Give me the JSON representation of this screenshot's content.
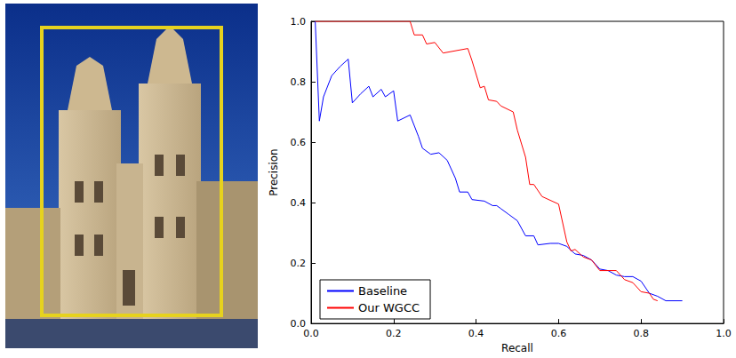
{
  "chart_data": {
    "type": "line",
    "x_label": "Recall",
    "y_label": "Precision",
    "xlim": [
      0,
      1
    ],
    "ylim": [
      0,
      1
    ],
    "xticks": [
      {
        "value": 0,
        "label": "0.0"
      },
      0.2,
      0.4,
      0.6,
      0.8,
      {
        "value": 1,
        "label": "1.0"
      }
    ],
    "yticks": [
      {
        "value": 0,
        "label": "0.0"
      },
      0.2,
      0.4,
      0.6,
      0.8,
      {
        "value": 1,
        "label": "1.0"
      }
    ],
    "grid": false,
    "legend": "lower left",
    "series": [
      {
        "name": "Baseline",
        "color": "#0000ff",
        "x": [
          0.01,
          0.02,
          0.03,
          0.05,
          0.07,
          0.09,
          0.1,
          0.12,
          0.14,
          0.15,
          0.17,
          0.18,
          0.2,
          0.21,
          0.24,
          0.26,
          0.27,
          0.29,
          0.31,
          0.33,
          0.35,
          0.36,
          0.38,
          0.39,
          0.42,
          0.44,
          0.45,
          0.46,
          0.48,
          0.5,
          0.52,
          0.54,
          0.55,
          0.58,
          0.6,
          0.62,
          0.64,
          0.66,
          0.68,
          0.7,
          0.72,
          0.74,
          0.76,
          0.78,
          0.8,
          0.82,
          0.84,
          0.86,
          0.9
        ],
        "values": [
          1.0,
          0.67,
          0.75,
          0.82,
          0.85,
          0.875,
          0.73,
          0.76,
          0.785,
          0.75,
          0.775,
          0.75,
          0.77,
          0.67,
          0.69,
          0.62,
          0.58,
          0.56,
          0.565,
          0.54,
          0.48,
          0.435,
          0.435,
          0.41,
          0.405,
          0.39,
          0.39,
          0.38,
          0.36,
          0.34,
          0.29,
          0.29,
          0.26,
          0.265,
          0.265,
          0.255,
          0.23,
          0.225,
          0.21,
          0.18,
          0.175,
          0.16,
          0.155,
          0.155,
          0.14,
          0.1,
          0.09,
          0.075,
          0.075
        ]
      },
      {
        "name": "Our WGCC",
        "color": "#ff0000",
        "x": [
          0.01,
          0.24,
          0.25,
          0.27,
          0.28,
          0.3,
          0.32,
          0.38,
          0.39,
          0.41,
          0.42,
          0.43,
          0.45,
          0.46,
          0.49,
          0.5,
          0.52,
          0.53,
          0.54,
          0.56,
          0.6,
          0.62,
          0.63,
          0.64,
          0.66,
          0.68,
          0.7,
          0.74,
          0.76,
          0.78,
          0.8,
          0.82,
          0.83,
          0.84
        ],
        "values": [
          1.0,
          1.0,
          0.955,
          0.955,
          0.925,
          0.93,
          0.895,
          0.91,
          0.87,
          0.78,
          0.785,
          0.74,
          0.735,
          0.72,
          0.7,
          0.64,
          0.55,
          0.46,
          0.46,
          0.42,
          0.395,
          0.27,
          0.24,
          0.245,
          0.22,
          0.21,
          0.175,
          0.175,
          0.145,
          0.135,
          0.105,
          0.1,
          0.08,
          0.075
        ]
      }
    ]
  }
}
